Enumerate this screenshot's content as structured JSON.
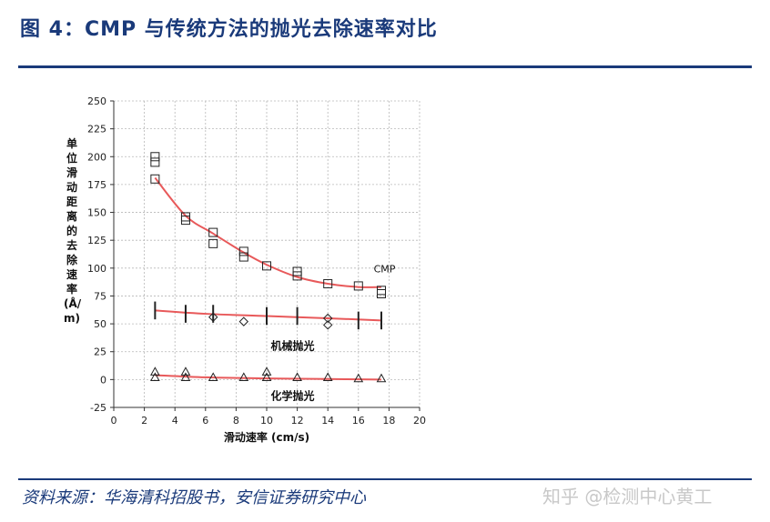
{
  "header": {
    "title": "图 4：CMP 与传统方法的抛光去除速率对比"
  },
  "footer": {
    "source": "资料来源：华海清科招股书，安信证券研究中心",
    "watermark": "知乎 @检测中心黄工"
  },
  "chart_data": {
    "type": "scatter",
    "title": "",
    "xlabel": "滑动速率 (cm/s)",
    "ylabel": "单位滑动距离的去除速率 (Å/m)",
    "xlim": [
      0,
      20
    ],
    "ylim": [
      -25,
      250
    ],
    "xticks": [
      0,
      2,
      4,
      6,
      8,
      10,
      12,
      14,
      16,
      18,
      20
    ],
    "yticks": [
      -25,
      0,
      25,
      50,
      75,
      100,
      125,
      150,
      175,
      200,
      225,
      250
    ],
    "grid": true,
    "series": [
      {
        "name": "CMP",
        "marker": "square",
        "points": [
          [
            2.7,
            200
          ],
          [
            2.7,
            195
          ],
          [
            2.7,
            180
          ],
          [
            4.7,
            146
          ],
          [
            4.7,
            143
          ],
          [
            6.5,
            132
          ],
          [
            6.5,
            122
          ],
          [
            8.5,
            115
          ],
          [
            8.5,
            110
          ],
          [
            10,
            102
          ],
          [
            12,
            97
          ],
          [
            12,
            93
          ],
          [
            14,
            86
          ],
          [
            16,
            84
          ],
          [
            17.5,
            80
          ],
          [
            17.5,
            77
          ]
        ],
        "fit": [
          [
            2.7,
            181
          ],
          [
            4.7,
            147
          ],
          [
            6.5,
            131
          ],
          [
            8.5,
            114
          ],
          [
            10,
            103
          ],
          [
            12,
            92
          ],
          [
            14,
            86
          ],
          [
            16,
            83
          ],
          [
            17.5,
            83
          ]
        ]
      },
      {
        "name": "机械抛光",
        "marker": "diamond",
        "points": [
          [
            6.5,
            56
          ],
          [
            8.5,
            52
          ],
          [
            14,
            55
          ],
          [
            14,
            49
          ]
        ],
        "errorbar_x": [
          2.7,
          4.7,
          6.5,
          10,
          12,
          16,
          17.5
        ],
        "fit": [
          [
            2.7,
            62
          ],
          [
            6,
            59
          ],
          [
            10,
            57
          ],
          [
            14,
            55
          ],
          [
            17.5,
            53
          ]
        ]
      },
      {
        "name": "化学抛光",
        "marker": "triangle",
        "points": [
          [
            2.7,
            7
          ],
          [
            2.7,
            2
          ],
          [
            4.7,
            7
          ],
          [
            4.7,
            2
          ],
          [
            6.5,
            2
          ],
          [
            8.5,
            2
          ],
          [
            10,
            7
          ],
          [
            10,
            2
          ],
          [
            12,
            2
          ],
          [
            14,
            2
          ],
          [
            16,
            1
          ],
          [
            17.5,
            1
          ]
        ],
        "fit": [
          [
            2.7,
            4
          ],
          [
            6,
            2
          ],
          [
            10,
            1
          ],
          [
            14,
            0.5
          ],
          [
            17.5,
            0
          ]
        ]
      }
    ]
  }
}
